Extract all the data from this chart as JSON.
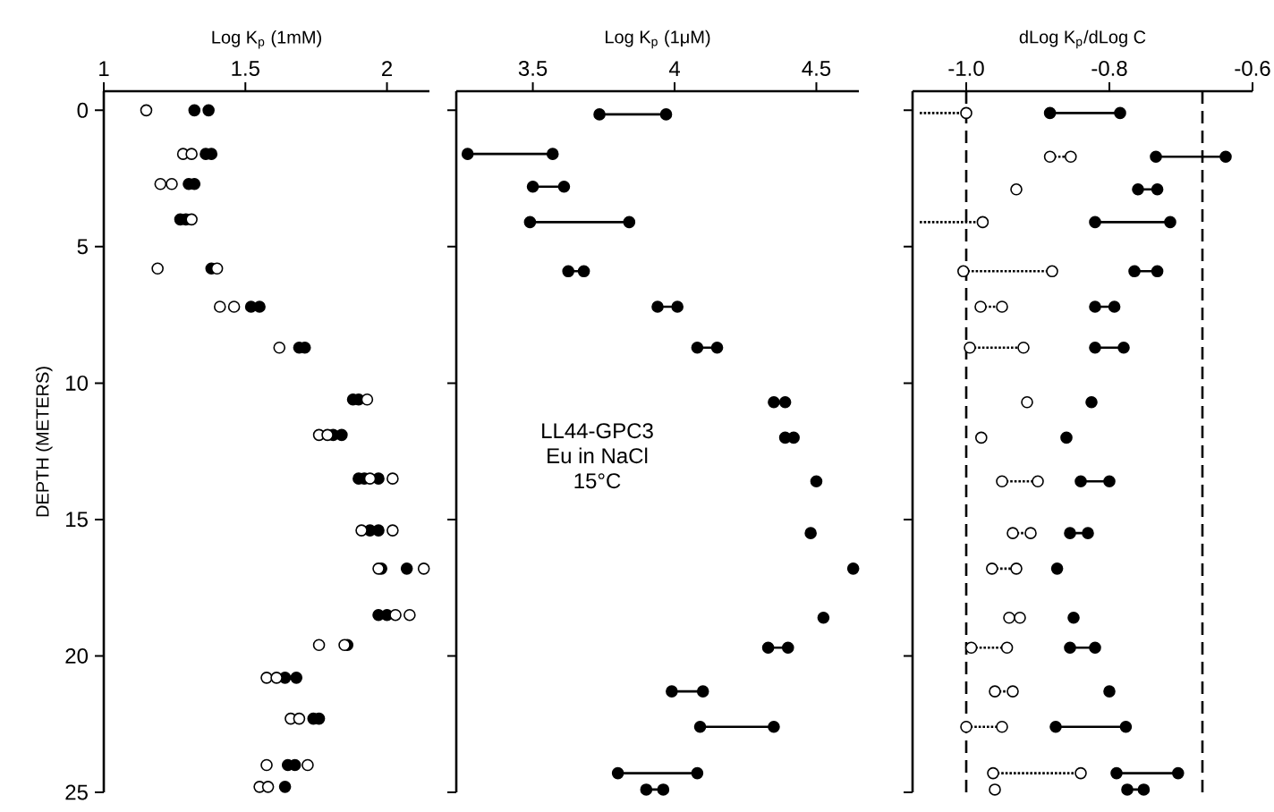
{
  "chart_data": [
    {
      "type": "scatter",
      "xlabel": "Log K$_{p}$ (1mM)",
      "ylabel": "DEPTH (METERS)",
      "xlim": [
        1,
        2.15
      ],
      "xticks": [
        1,
        1.5,
        2
      ],
      "ylim": [
        25,
        -0.7
      ],
      "yticks": [
        0,
        5,
        10,
        15,
        20,
        25
      ],
      "marker": "circle",
      "series": [
        {
          "color": "#000000",
          "x": [
            1.32,
            1.37,
            1.36,
            1.38,
            1.3,
            1.32,
            1.27,
            1.29,
            1.38,
            1.52,
            1.55,
            1.69,
            1.71,
            1.88,
            1.9,
            1.81,
            1.84,
            1.9,
            1.92,
            1.97,
            1.94,
            1.97,
            1.98,
            2.07,
            1.97,
            2.0,
            1.86,
            1.64,
            1.68,
            1.74,
            1.76,
            1.65,
            1.675,
            1.64
          ],
          "values": [
            0,
            0,
            1.6,
            1.6,
            2.7,
            2.7,
            4.0,
            4.0,
            5.8,
            7.2,
            7.2,
            8.7,
            8.7,
            10.6,
            10.6,
            11.9,
            11.9,
            13.5,
            13.5,
            13.5,
            15.4,
            15.4,
            16.8,
            16.8,
            18.5,
            18.5,
            19.6,
            20.8,
            20.8,
            22.3,
            22.3,
            24.0,
            24.0,
            24.8
          ]
        },
        {
          "color": "#ffffff",
          "x": [
            1.15,
            1.28,
            1.31,
            1.2,
            1.24,
            1.31,
            1.19,
            1.4,
            1.41,
            1.46,
            1.62,
            1.93,
            1.76,
            1.79,
            1.94,
            2.02,
            1.91,
            2.02,
            1.97,
            2.13,
            2.03,
            2.08,
            1.76,
            1.85,
            1.575,
            1.61,
            1.66,
            1.69,
            1.575,
            1.72,
            1.55,
            1.58
          ],
          "values": [
            0,
            1.6,
            1.6,
            2.7,
            2.7,
            4.0,
            5.8,
            5.8,
            7.2,
            7.2,
            8.7,
            10.6,
            11.9,
            11.9,
            13.5,
            13.5,
            15.4,
            15.4,
            16.8,
            16.8,
            18.5,
            18.5,
            19.6,
            19.6,
            20.8,
            20.8,
            22.3,
            22.3,
            24.0,
            24.0,
            24.8,
            24.8
          ]
        }
      ]
    },
    {
      "type": "line",
      "xlabel": "Log K$_{p}$ (1μM)",
      "xlim": [
        3.23,
        4.65
      ],
      "xticks": [
        3.5,
        4,
        4.5
      ],
      "ylim": [
        25,
        -0.7
      ],
      "yticks": [
        0,
        5,
        10,
        15,
        20,
        25
      ],
      "tick_labels": "x",
      "marker": "circle",
      "line_style": "solid",
      "annotations": [
        "LL44-GPC3",
        "Eu in NaCl",
        "15°C"
      ],
      "series": [
        {
          "color": "#000000",
          "x": [
            3.735,
            3.97,
            null,
            3.27,
            3.57,
            null,
            3.5,
            3.61,
            null,
            3.49,
            3.84,
            null,
            3.625,
            3.68,
            null,
            3.94,
            4.01,
            null,
            4.08,
            4.15,
            null,
            4.35,
            4.39,
            null,
            4.39,
            4.42,
            null,
            4.5,
            null,
            4.48,
            null,
            4.63,
            null,
            4.525,
            null,
            4.33,
            4.4,
            null,
            3.99,
            4.1,
            null,
            4.09,
            4.35,
            null,
            3.8,
            4.08,
            null,
            3.9,
            3.96
          ],
          "values": [
            0.15,
            0.15,
            null,
            1.6,
            1.6,
            null,
            2.8,
            2.8,
            null,
            4.1,
            4.1,
            null,
            5.9,
            5.9,
            null,
            7.2,
            7.2,
            null,
            8.7,
            8.7,
            null,
            10.7,
            10.7,
            null,
            12.0,
            12.0,
            null,
            13.6,
            null,
            15.5,
            null,
            16.8,
            null,
            18.6,
            null,
            19.7,
            19.7,
            null,
            21.3,
            21.3,
            null,
            22.6,
            22.6,
            null,
            24.3,
            24.3,
            null,
            24.9,
            24.9
          ]
        }
      ]
    },
    {
      "type": "line",
      "xlabel": "dLog K$_{p}$/dLog C",
      "xlim": [
        -1.075,
        -0.6
      ],
      "xticks": [
        {
          "value": -1.0,
          "label": "-1.0"
        },
        {
          "value": -0.8,
          "label": "-0.8"
        },
        {
          "value": -0.6,
          "label": "-0.6"
        }
      ],
      "ylim": [
        25,
        -0.7
      ],
      "yticks": [
        0,
        5,
        10,
        15,
        20,
        25
      ],
      "tick_labels": "x",
      "ref_lines": [
        {
          "axis": "x",
          "value": -1.0,
          "line_style": "dashed"
        },
        {
          "axis": "x",
          "value": -0.67,
          "line_style": "dashed"
        }
      ],
      "series": [
        {
          "color": "#000000",
          "marker": "circle",
          "line_style": "solid",
          "x": [
            -0.883,
            -0.785,
            null,
            -0.735,
            -0.6375,
            null,
            -0.76,
            -0.733,
            null,
            -0.82,
            -0.715,
            null,
            -0.765,
            -0.733,
            null,
            -0.82,
            -0.793,
            null,
            -0.82,
            -0.78,
            null,
            -0.825,
            null,
            -0.86,
            null,
            -0.84,
            -0.8,
            null,
            -0.855,
            -0.83,
            null,
            -0.873,
            null,
            -0.85,
            null,
            -0.855,
            -0.82,
            null,
            -0.8,
            null,
            -0.875,
            -0.777,
            null,
            -0.79,
            -0.704,
            null,
            -0.775,
            -0.752
          ],
          "values": [
            0.1,
            0.1,
            null,
            1.7,
            1.7,
            null,
            2.9,
            2.9,
            null,
            4.1,
            4.1,
            null,
            5.9,
            5.9,
            null,
            7.2,
            7.2,
            null,
            8.7,
            8.7,
            null,
            10.7,
            null,
            12.0,
            null,
            13.6,
            13.6,
            null,
            15.5,
            15.5,
            null,
            16.8,
            null,
            18.6,
            null,
            19.7,
            19.7,
            null,
            21.3,
            null,
            22.6,
            22.6,
            null,
            24.3,
            24.3,
            null,
            24.9,
            24.9
          ]
        },
        {
          "color": "#ffffff",
          "marker": "circle",
          "line_style": "dotted",
          "x": [
            -1.0,
            null,
            -0.883,
            -0.854,
            null,
            -0.93,
            null,
            -0.977,
            null,
            -1.004,
            -0.88,
            null,
            -0.98,
            -0.95,
            null,
            -0.995,
            -0.92,
            null,
            -0.915,
            null,
            -0.979,
            null,
            -0.95,
            -0.9,
            null,
            -0.935,
            -0.91,
            null,
            -0.964,
            -0.93,
            null,
            -0.94,
            -0.925,
            null,
            -0.993,
            -0.943,
            null,
            -0.96,
            -0.935,
            null,
            -1.0,
            -0.95,
            null,
            -0.9625,
            -0.84,
            null,
            -0.96
          ],
          "values": [
            0.1,
            null,
            1.7,
            1.7,
            null,
            2.9,
            null,
            4.1,
            null,
            5.9,
            5.9,
            null,
            7.2,
            7.2,
            null,
            8.7,
            8.7,
            null,
            10.7,
            null,
            12.0,
            null,
            13.6,
            13.6,
            null,
            15.5,
            15.5,
            null,
            16.8,
            16.8,
            null,
            18.6,
            18.6,
            null,
            19.7,
            19.7,
            null,
            21.3,
            21.3,
            null,
            22.6,
            22.6,
            null,
            24.3,
            24.3,
            null,
            24.9
          ]
        },
        {
          "color": "#000000",
          "marker": "none",
          "line_style": "dotted",
          "x": [
            -1.065,
            -1.0,
            null,
            -1.065,
            -0.977
          ],
          "values": [
            0.1,
            0.1,
            null,
            4.1,
            4.1
          ]
        }
      ]
    }
  ]
}
